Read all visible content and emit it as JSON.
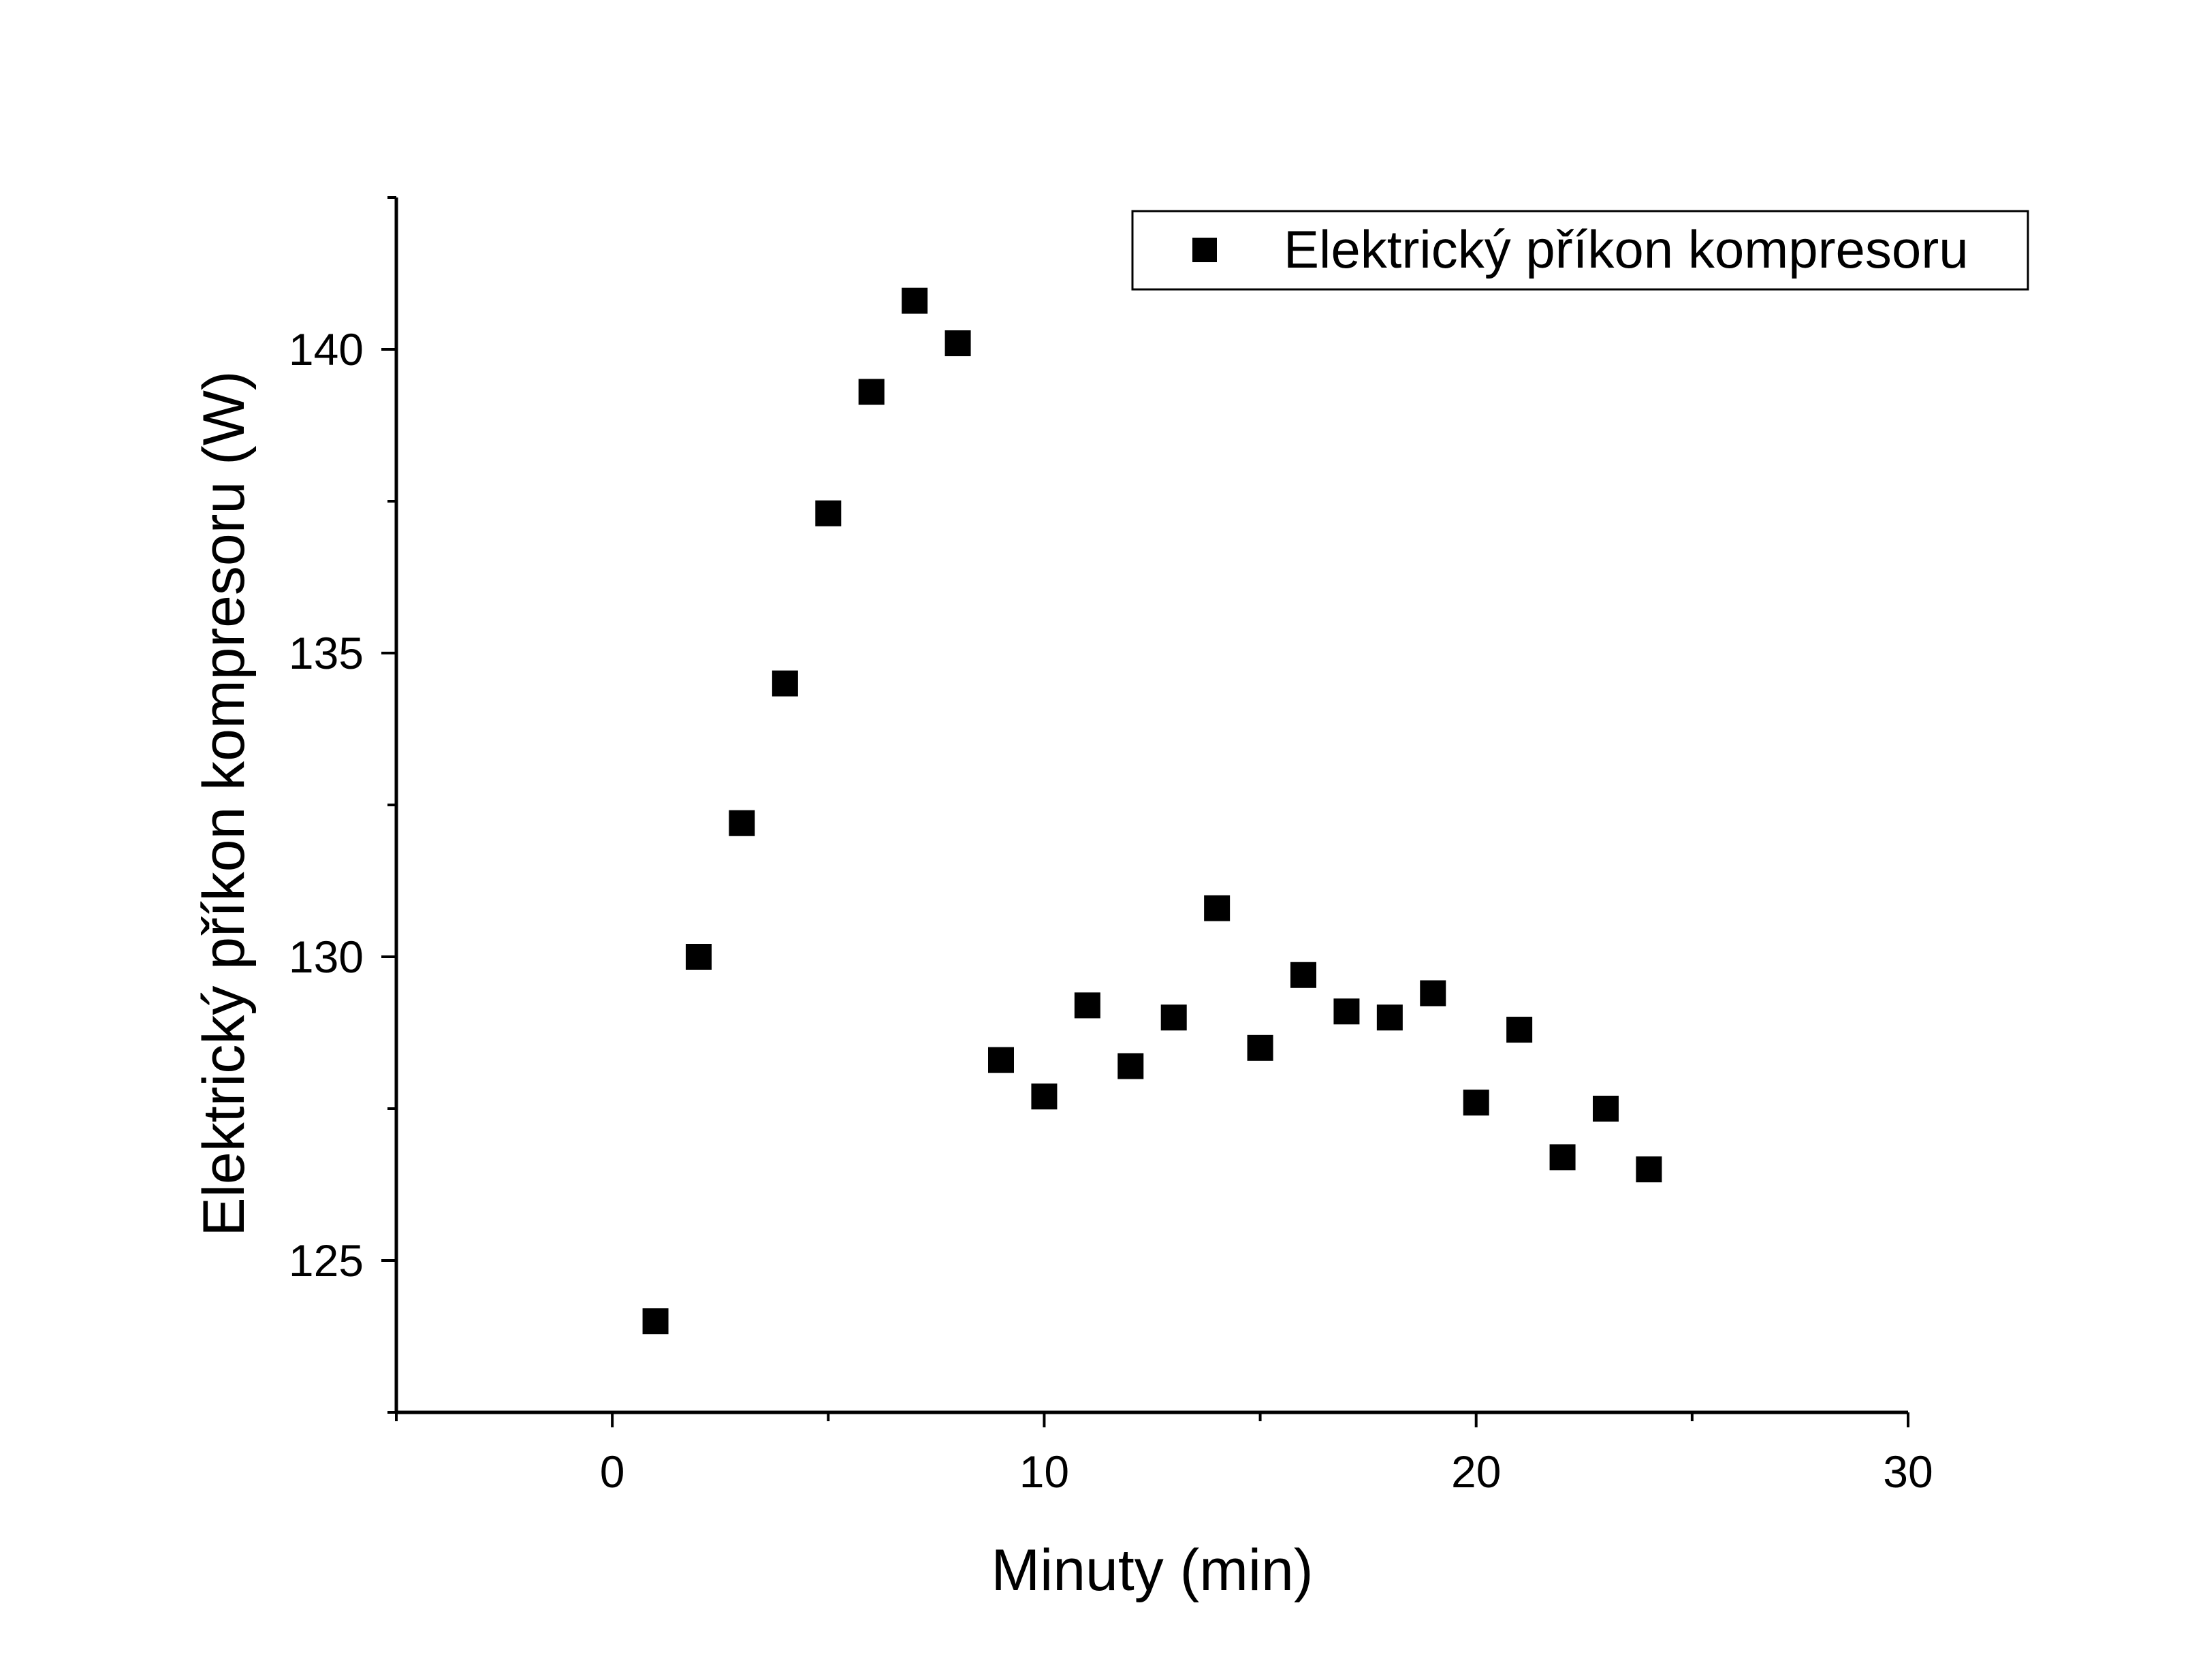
{
  "chart_data": {
    "type": "scatter",
    "xlabel": "Minuty (min)",
    "ylabel": "Elektrický příkon kompresoru (W)",
    "xlim": [
      -5,
      30
    ],
    "ylim": [
      122.5,
      142.5
    ],
    "x_ticks": [
      0,
      10,
      20,
      30
    ],
    "x_tick_labels": [
      "0",
      "10",
      "20",
      "30"
    ],
    "y_ticks": [
      125,
      130,
      135,
      140
    ],
    "y_tick_labels": [
      "125",
      "130",
      "135",
      "140"
    ],
    "grid": false,
    "legend_position": "top-right",
    "series": [
      {
        "name": "Elektrický příkon kompresoru",
        "color": "#000000",
        "marker": "square",
        "x": [
          1,
          2,
          3,
          4,
          5,
          6,
          7,
          8,
          9,
          10,
          11,
          12,
          13,
          14,
          15,
          16,
          17,
          18,
          19,
          20,
          21,
          22,
          23,
          24
        ],
        "y": [
          124.0,
          130.0,
          132.2,
          134.5,
          137.3,
          139.3,
          140.8,
          140.1,
          128.3,
          127.7,
          129.2,
          128.2,
          129.0,
          130.8,
          128.5,
          129.7,
          129.1,
          129.0,
          129.4,
          127.6,
          128.8,
          126.7,
          127.5,
          126.5
        ]
      }
    ]
  }
}
